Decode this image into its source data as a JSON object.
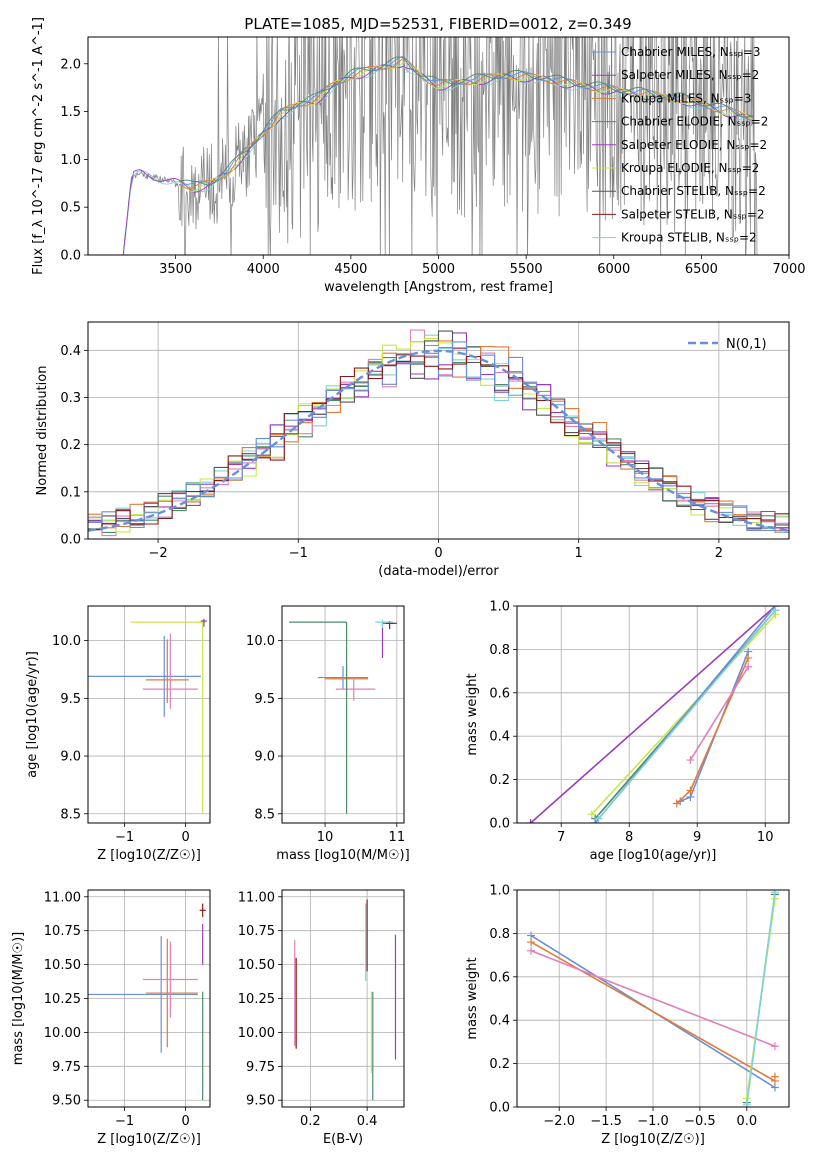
{
  "figure_title": "PLATE=1085, MJD=52531, FIBERID=0012, z=0.349",
  "colors": {
    "chabrier_miles": "#6a8fdb",
    "salpeter_miles": "#9b3cb7",
    "kroupa_miles": "#e07b39",
    "chabrier_elodie": "#4c8c6b",
    "salpeter_elodie": "#a040b8",
    "kroupa_elodie": "#c7e84a",
    "chabrier_stelib": "#555555",
    "salpeter_stelib": "#8b1a1a",
    "kroupa_stelib": "#7fd3d8",
    "data": "#808080",
    "pink": "#e37fb8",
    "normal": "#6a8fdb"
  },
  "chart_data": [
    {
      "id": "spectrum",
      "type": "line",
      "title": "PLATE=1085, MJD=52531, FIBERID=0012, z=0.349",
      "xlabel": "wavelength [Angstrom, rest frame]",
      "ylabel": "Flux [f_λ 10^-17 erg cm^-2 s^-1 A^-1]",
      "xlim": [
        3000,
        7000
      ],
      "ylim": [
        0,
        2.28
      ],
      "xticks": [
        3500,
        4000,
        4500,
        5000,
        5500,
        6000,
        6500,
        7000
      ],
      "yticks": [
        0.0,
        0.5,
        1.0,
        1.5,
        2.0
      ],
      "legend": "top-right",
      "legend_entries": [
        {
          "name": "Chabrier MILES, N_SSP=3",
          "key": "chabrier_miles"
        },
        {
          "name": "Salpeter MILES, N_SSP=2",
          "key": "salpeter_miles"
        },
        {
          "name": "Kroupa MILES, N_SSP=3",
          "key": "kroupa_miles"
        },
        {
          "name": "Chabrier ELODIE, N_SSP=2",
          "key": "chabrier_elodie"
        },
        {
          "name": "Salpeter ELODIE, N_SSP=2",
          "key": "salpeter_elodie"
        },
        {
          "name": "Kroupa ELODIE, N_SSP=2",
          "key": "kroupa_elodie"
        },
        {
          "name": "Chabrier STELIB, N_SSP=2",
          "key": "chabrier_stelib"
        },
        {
          "name": "Salpeter STELIB, N_SSP=2",
          "key": "salpeter_stelib"
        },
        {
          "name": "Kroupa STELIB, N_SSP=2",
          "key": "kroupa_stelib"
        }
      ],
      "model_continuum": {
        "x": [
          3200,
          3250,
          3300,
          3400,
          3500,
          3600,
          3700,
          3800,
          3900,
          4000,
          4100,
          4200,
          4300,
          4400,
          4500,
          4600,
          4700,
          4800,
          4900,
          5000,
          5200,
          5400,
          5600,
          5800,
          6000,
          6200,
          6400,
          6600,
          6800
        ],
        "y": [
          0.0,
          0.82,
          0.85,
          0.8,
          0.75,
          0.68,
          0.72,
          0.85,
          1.05,
          1.25,
          1.45,
          1.55,
          1.6,
          1.75,
          1.85,
          1.9,
          1.95,
          2.0,
          1.85,
          1.75,
          1.8,
          1.85,
          1.82,
          1.75,
          1.7,
          1.65,
          1.6,
          1.5,
          1.4
        ]
      }
    },
    {
      "id": "residuals",
      "type": "line",
      "xlabel": "(data-model)/error",
      "ylabel": "Normed distribution",
      "xlim": [
        -2.5,
        2.5
      ],
      "ylim": [
        0,
        0.46
      ],
      "xticks": [
        -2,
        -1,
        0,
        1,
        2
      ],
      "yticks": [
        0.0,
        0.1,
        0.2,
        0.3,
        0.4
      ],
      "grid": true,
      "legend": "top-right",
      "legend_entries": [
        {
          "name": "N(0,1)",
          "key": "normal"
        }
      ]
    },
    {
      "id": "age_vs_Z",
      "type": "scatter",
      "xlabel": "Z [log10(Z/Z☉)]",
      "ylabel": "age [log10(age/yr)]",
      "xlim": [
        -1.6,
        0.4
      ],
      "ylim": [
        8.42,
        10.3
      ],
      "xticks": [
        -1,
        0
      ],
      "yticks": [
        8.5,
        9.0,
        9.5,
        10.0
      ],
      "grid": true
    },
    {
      "id": "age_vs_mass",
      "type": "scatter",
      "xlabel": "mass [log10(M/M☉)]",
      "ylabel": "",
      "xlim": [
        9.4,
        11.1
      ],
      "ylim": [
        8.42,
        10.3
      ],
      "xticks": [
        10,
        11
      ],
      "yticks": [
        8.5,
        9.0,
        9.5,
        10.0
      ],
      "grid": true
    },
    {
      "id": "weight_vs_age",
      "type": "line",
      "xlabel": "age [log10(age/yr)]",
      "ylabel": "mass weight",
      "xlim": [
        6.35,
        10.35
      ],
      "ylim": [
        0,
        1.0
      ],
      "xticks": [
        7,
        8,
        9,
        10
      ],
      "yticks": [
        0.0,
        0.2,
        0.4,
        0.6,
        0.8,
        1.0
      ],
      "grid": true
    },
    {
      "id": "mass_vs_Z",
      "type": "scatter",
      "xlabel": "Z [log10(Z/Z☉)]",
      "ylabel": "mass [log10(M/M☉)]",
      "xlim": [
        -1.6,
        0.4
      ],
      "ylim": [
        9.45,
        11.05
      ],
      "xticks": [
        -1,
        0
      ],
      "yticks": [
        9.5,
        9.75,
        10.0,
        10.25,
        10.5,
        10.75,
        11.0
      ],
      "grid": true
    },
    {
      "id": "mass_vs_ebv",
      "type": "scatter",
      "xlabel": "E(B-V)",
      "ylabel": "",
      "xlim": [
        0.1,
        0.53
      ],
      "ylim": [
        9.45,
        11.05
      ],
      "xticks": [
        0.2,
        0.4
      ],
      "yticks": [
        9.5,
        9.75,
        10.0,
        10.25,
        10.5,
        10.75,
        11.0
      ],
      "grid": true
    },
    {
      "id": "weight_vs_Z",
      "type": "line",
      "xlabel": "Z [log10(Z/Z☉)]",
      "ylabel": "mass weight",
      "xlim": [
        -2.45,
        0.45
      ],
      "ylim": [
        0,
        1.0
      ],
      "xticks": [
        -2.0,
        -1.5,
        -1.0,
        -0.5,
        0.0
      ],
      "yticks": [
        0.0,
        0.2,
        0.4,
        0.6,
        0.8,
        1.0
      ],
      "grid": true
    }
  ]
}
